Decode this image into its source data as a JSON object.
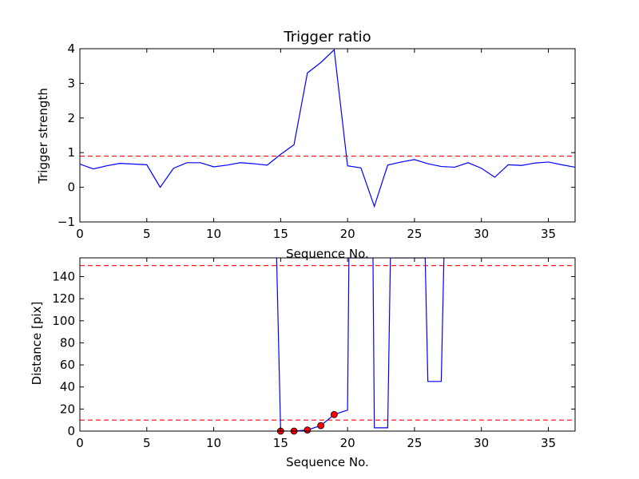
{
  "chart_data": [
    {
      "type": "line",
      "title": "Trigger ratio",
      "xlabel": "Sequence No.",
      "ylabel": "Trigger strength",
      "xlim": [
        0,
        37
      ],
      "ylim": [
        -1,
        4
      ],
      "x_ticks": [
        0,
        5,
        10,
        15,
        20,
        25,
        30,
        35
      ],
      "y_ticks": [
        -1,
        0,
        1,
        2,
        3,
        4
      ],
      "grid": false,
      "series": [
        {
          "color": "#0000ff",
          "style": "solid",
          "x": [
            0,
            1,
            2,
            3,
            4,
            5,
            6,
            7,
            8,
            9,
            10,
            11,
            12,
            13,
            14,
            15,
            16,
            17,
            18,
            19,
            20,
            21,
            22,
            23,
            24,
            25,
            26,
            27,
            28,
            29,
            30,
            31,
            32,
            33,
            34,
            35,
            36,
            37
          ],
          "y": [
            0.67,
            0.53,
            0.62,
            0.69,
            0.67,
            0.65,
            0.0,
            0.55,
            0.71,
            0.71,
            0.59,
            0.64,
            0.71,
            0.68,
            0.64,
            0.95,
            1.23,
            3.3,
            3.6,
            3.97,
            0.62,
            0.56,
            -0.55,
            0.64,
            0.73,
            0.8,
            0.68,
            0.6,
            0.58,
            0.71,
            0.55,
            0.29,
            0.65,
            0.63,
            0.7,
            0.73,
            0.65,
            0.58
          ]
        }
      ],
      "reference_lines": [
        {
          "orientation": "horizontal",
          "value": 0.9,
          "color": "#ff0000",
          "style": "dashed"
        }
      ]
    },
    {
      "type": "line",
      "title": "",
      "xlabel": "Sequence No.",
      "ylabel": "Distance [pix]",
      "xlim": [
        0,
        37
      ],
      "ylim": [
        0,
        157
      ],
      "x_ticks": [
        0,
        5,
        10,
        15,
        20,
        25,
        30,
        35
      ],
      "y_ticks": [
        0,
        20,
        40,
        60,
        80,
        100,
        120,
        140
      ],
      "grid": false,
      "series": [
        {
          "color": "#0000ff",
          "style": "solid",
          "x": [
            14.7,
            15,
            16,
            17,
            18,
            19,
            20,
            20.1,
            21.9,
            22,
            23,
            23.2,
            25.8,
            26,
            27,
            27.2
          ],
          "y": [
            157,
            0,
            0,
            1,
            5,
            15,
            19,
            157,
            157,
            3,
            3,
            157,
            157,
            45,
            45,
            157
          ]
        },
        {
          "color": "#ff0000",
          "style": "markers",
          "x": [
            15,
            16,
            17,
            18,
            19
          ],
          "y": [
            0,
            0,
            1,
            5,
            15
          ]
        }
      ],
      "reference_lines": [
        {
          "orientation": "horizontal",
          "value": 150,
          "color": "#ff0000",
          "style": "dashed"
        },
        {
          "orientation": "horizontal",
          "value": 10,
          "color": "#ff0000",
          "style": "dashed"
        }
      ]
    }
  ]
}
